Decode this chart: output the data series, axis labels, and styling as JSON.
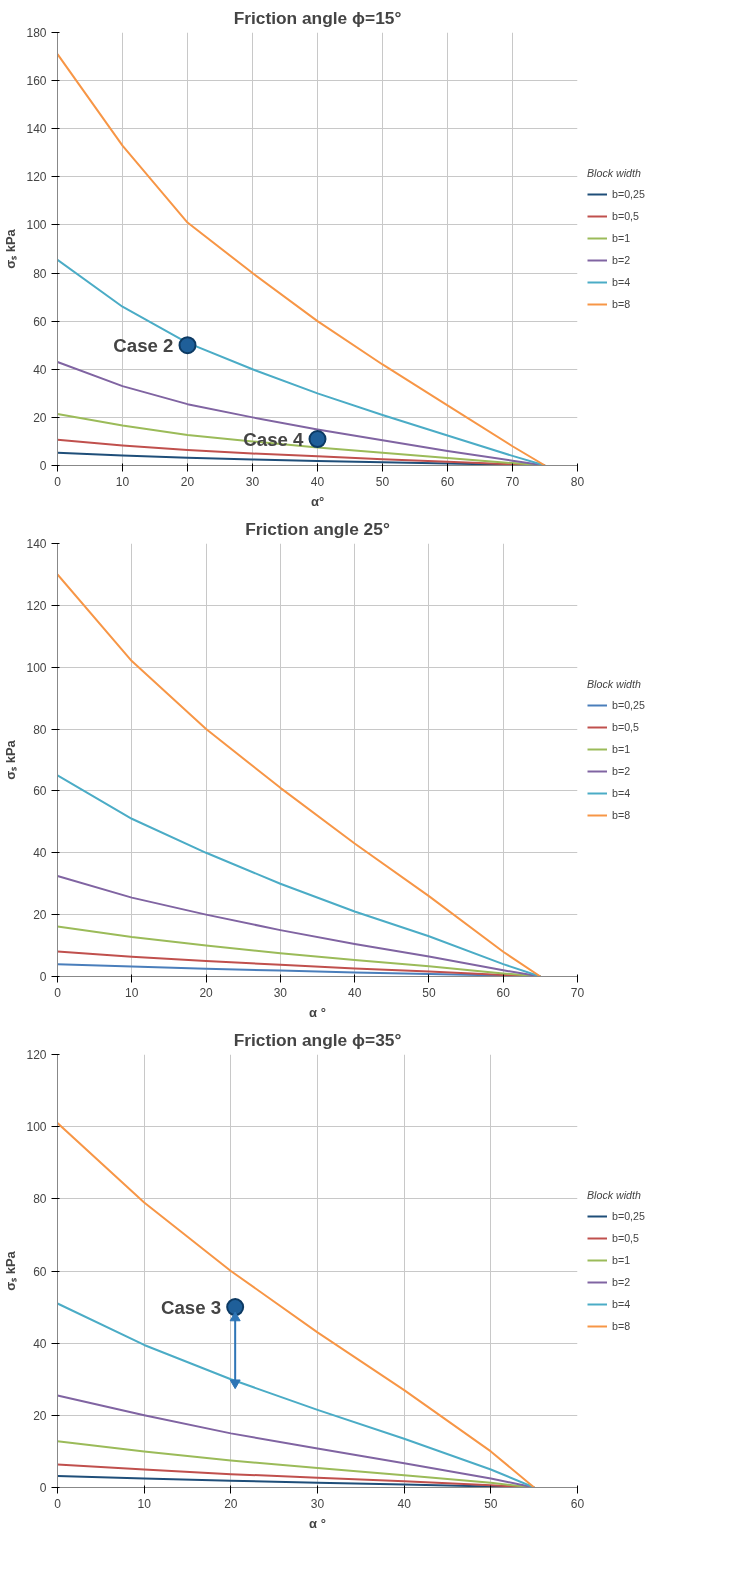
{
  "chart_data": [
    {
      "type": "line",
      "title": "Friction angle ϕ=15°",
      "xlabel": "α°",
      "ylabel": "σₛ kPa",
      "legend_title": "Block width",
      "legend": "right",
      "grid": true,
      "marker": "none",
      "xlim": [
        0,
        80
      ],
      "xticks": [
        0,
        10,
        20,
        30,
        40,
        50,
        60,
        70,
        80
      ],
      "ylim": [
        0,
        180
      ],
      "yticks": [
        0,
        20,
        40,
        60,
        80,
        100,
        120,
        140,
        160,
        180
      ],
      "x": [
        0,
        10,
        20,
        30,
        40,
        50,
        60,
        70,
        75
      ],
      "series": [
        {
          "name": "b=0,25",
          "color": "#1f4e79",
          "values": [
            5.3,
            4.2,
            3.2,
            2.5,
            1.9,
            1.3,
            0.8,
            0.3,
            0
          ]
        },
        {
          "name": "b=0,5",
          "color": "#c0504d",
          "values": [
            10.7,
            8.3,
            6.4,
            5,
            3.8,
            2.6,
            1.6,
            0.5,
            0
          ]
        },
        {
          "name": "b=1",
          "color": "#9bbb59",
          "values": [
            21.4,
            16.6,
            12.7,
            10,
            7.5,
            5.3,
            3.1,
            1,
            0
          ]
        },
        {
          "name": "b=2",
          "color": "#8064a2",
          "values": [
            43,
            33,
            25.5,
            20,
            15,
            10.5,
            6,
            2,
            0
          ]
        },
        {
          "name": "b=4",
          "color": "#4bacc6",
          "values": [
            85.5,
            66,
            51,
            40,
            30,
            21,
            12.5,
            4,
            0
          ]
        },
        {
          "name": "b=8",
          "color": "#f79646",
          "values": [
            171,
            133,
            101,
            80,
            60,
            42,
            25,
            8,
            0
          ]
        },
        {
          "type": "scatter",
          "marker": "circle",
          "color": "#1f5f99",
          "x": [
            20,
            40
          ],
          "values": [
            50,
            11
          ]
        }
      ],
      "annotations": [
        {
          "text": "Case 2",
          "x": 20,
          "y": 50
        },
        {
          "text": "Case 4",
          "x": 40,
          "y": 11
        }
      ]
    },
    {
      "type": "line",
      "title": "Friction angle 25°",
      "xlabel": "α °",
      "ylabel": "σₛ kPa",
      "legend_title": "Block width",
      "legend": "right",
      "grid": true,
      "marker": "none",
      "xlim": [
        0,
        70
      ],
      "xticks": [
        0,
        10,
        20,
        30,
        40,
        50,
        60,
        70
      ],
      "ylim": [
        0,
        140
      ],
      "yticks": [
        0,
        20,
        40,
        60,
        80,
        100,
        120,
        140
      ],
      "x": [
        0,
        10,
        20,
        30,
        40,
        50,
        60,
        65
      ],
      "series": [
        {
          "name": "b=0,25",
          "color": "#4a7ebb",
          "values": [
            4,
            3.2,
            2.5,
            1.9,
            1.3,
            0.8,
            0.3,
            0
          ]
        },
        {
          "name": "b=0,5",
          "color": "#c0504d",
          "values": [
            8.1,
            6.4,
            5,
            3.8,
            2.6,
            1.6,
            0.5,
            0
          ]
        },
        {
          "name": "b=1",
          "color": "#9bbb59",
          "values": [
            16.2,
            12.8,
            10,
            7.5,
            5.3,
            3.3,
            1,
            0
          ]
        },
        {
          "name": "b=2",
          "color": "#8064a2",
          "values": [
            32.5,
            25.5,
            20,
            15,
            10.5,
            6.5,
            2,
            0
          ]
        },
        {
          "name": "b=4",
          "color": "#4bacc6",
          "values": [
            65,
            51,
            40,
            30,
            21,
            13,
            4,
            0
          ]
        },
        {
          "name": "b=8",
          "color": "#f79646",
          "values": [
            130,
            102,
            80,
            61,
            43,
            26,
            8,
            0
          ]
        }
      ]
    },
    {
      "type": "line",
      "title": "Friction angle ϕ=35°",
      "xlabel": "α °",
      "ylabel": "σₛ kPa",
      "legend_title": "Block width",
      "legend": "right",
      "grid": true,
      "marker": "none",
      "xlim": [
        0,
        60
      ],
      "xticks": [
        0,
        10,
        20,
        30,
        40,
        50,
        60
      ],
      "ylim": [
        0,
        120
      ],
      "yticks": [
        0,
        20,
        40,
        60,
        80,
        100,
        120
      ],
      "x": [
        0,
        10,
        20,
        30,
        40,
        50,
        55
      ],
      "series": [
        {
          "name": "b=0,25",
          "color": "#1f4e79",
          "values": [
            3.2,
            2.5,
            1.9,
            1.3,
            0.8,
            0.3,
            0
          ]
        },
        {
          "name": "b=0,5",
          "color": "#c0504d",
          "values": [
            6.4,
            5,
            3.7,
            2.7,
            1.7,
            0.6,
            0
          ]
        },
        {
          "name": "b=1",
          "color": "#9bbb59",
          "values": [
            12.8,
            10,
            7.5,
            5.4,
            3.4,
            1.3,
            0
          ]
        },
        {
          "name": "b=2",
          "color": "#8064a2",
          "values": [
            25.5,
            20,
            15,
            10.8,
            6.7,
            2.5,
            0
          ]
        },
        {
          "name": "b=4",
          "color": "#4bacc6",
          "values": [
            51,
            39.5,
            30,
            21.5,
            13.5,
            5,
            0
          ]
        },
        {
          "name": "b=8",
          "color": "#f79646",
          "values": [
            101,
            79,
            60,
            43,
            27,
            10,
            0
          ]
        },
        {
          "type": "scatter",
          "marker": "circle",
          "color": "#1f5f99",
          "x": [
            20.5
          ],
          "values": [
            50
          ]
        },
        {
          "type": "line",
          "marker": "triangle",
          "color": "#2e75b6",
          "x": [
            20.5,
            20.5
          ],
          "values": [
            47,
            29
          ]
        }
      ],
      "annotations": [
        {
          "text": "Case 3",
          "x": 20.5,
          "y": 50
        }
      ]
    }
  ]
}
